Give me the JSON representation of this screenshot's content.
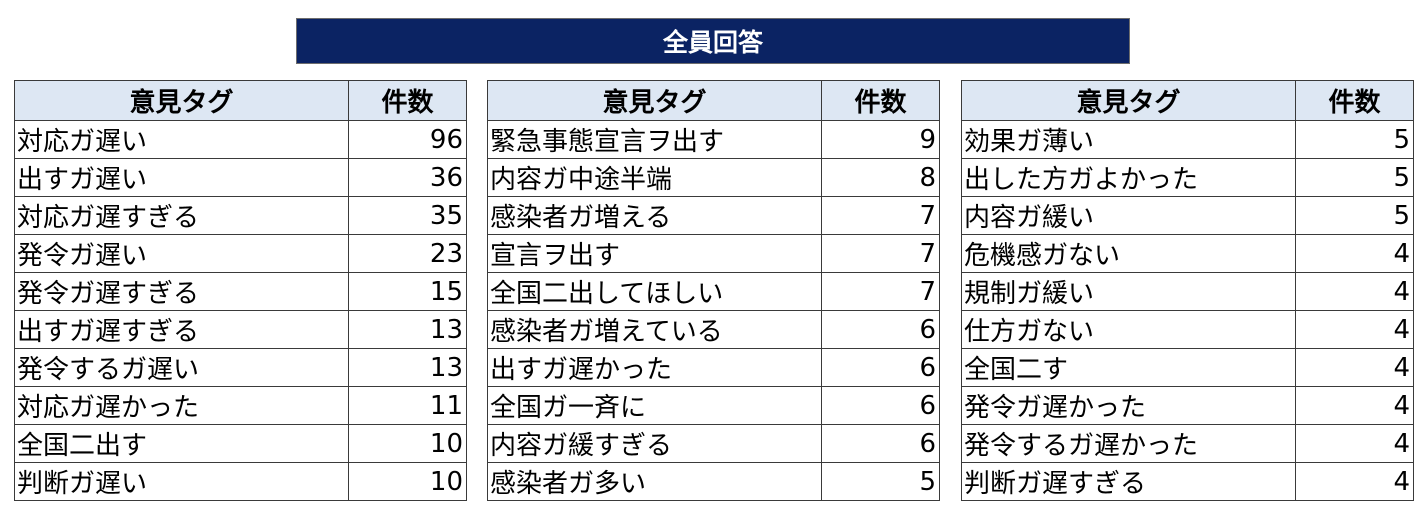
{
  "banner": {
    "title": "全員回答"
  },
  "tables": [
    {
      "headers": {
        "tag": "意見タグ",
        "count": "件数"
      },
      "rows": [
        {
          "tag": "対応ガ遅い",
          "count": "96"
        },
        {
          "tag": "出すガ遅い",
          "count": "36"
        },
        {
          "tag": "対応ガ遅すぎる",
          "count": "35"
        },
        {
          "tag": "発令ガ遅い",
          "count": "23"
        },
        {
          "tag": "発令ガ遅すぎる",
          "count": "15"
        },
        {
          "tag": "出すガ遅すぎる",
          "count": "13"
        },
        {
          "tag": "発令するガ遅い",
          "count": "13"
        },
        {
          "tag": "対応ガ遅かった",
          "count": "11"
        },
        {
          "tag": "全国二出す",
          "count": "10"
        },
        {
          "tag": "判断ガ遅い",
          "count": "10"
        }
      ]
    },
    {
      "headers": {
        "tag": "意見タグ",
        "count": "件数"
      },
      "rows": [
        {
          "tag": "緊急事態宣言ヲ出す",
          "count": "9"
        },
        {
          "tag": "内容ガ中途半端",
          "count": "8"
        },
        {
          "tag": "感染者ガ増える",
          "count": "7"
        },
        {
          "tag": "宣言ヲ出す",
          "count": "7"
        },
        {
          "tag": "全国二出してほしい",
          "count": "7"
        },
        {
          "tag": "感染者ガ増えている",
          "count": "6"
        },
        {
          "tag": "出すガ遅かった",
          "count": "6"
        },
        {
          "tag": "全国ガ一斉に",
          "count": "6"
        },
        {
          "tag": "内容ガ緩すぎる",
          "count": "6"
        },
        {
          "tag": "感染者ガ多い",
          "count": "5"
        }
      ]
    },
    {
      "headers": {
        "tag": "意見タグ",
        "count": "件数"
      },
      "rows": [
        {
          "tag": "効果ガ薄い",
          "count": "5"
        },
        {
          "tag": "出した方ガよかった",
          "count": "5"
        },
        {
          "tag": "内容ガ緩い",
          "count": "5"
        },
        {
          "tag": "危機感ガない",
          "count": "4"
        },
        {
          "tag": "規制ガ緩い",
          "count": "4"
        },
        {
          "tag": "仕方ガない",
          "count": "4"
        },
        {
          "tag": "全国二す",
          "count": "4"
        },
        {
          "tag": "発令ガ遅かった",
          "count": "4"
        },
        {
          "tag": "発令するガ遅かった",
          "count": "4"
        },
        {
          "tag": "判断ガ遅すぎる",
          "count": "4"
        }
      ]
    }
  ]
}
